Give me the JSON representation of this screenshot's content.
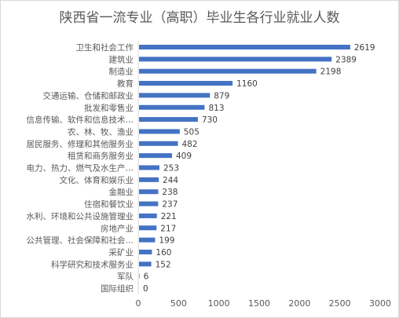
{
  "chart_data": {
    "type": "bar",
    "orientation": "horizontal",
    "title": "陕西省一流专业（高职）毕业生各行业就业人数",
    "categories": [
      "卫生和社会工作",
      "建筑业",
      "制造业",
      "教育",
      "交通运输、仓储和邮政业",
      "批发和零售业",
      "信息传输、软件和信息技术…",
      "农、林、牧、渔业",
      "居民服务、修理和其他服务业",
      "租赁和商务服务业",
      "电力、热力、燃气及水生产…",
      "文化、体育和娱乐业",
      "金融业",
      "住宿和餐饮业",
      "水利、环境和公共设施管理业",
      "房地产业",
      "公共管理、社会保障和社会…",
      "采矿业",
      "科学研究和技术服务业",
      "军队",
      "国际组织"
    ],
    "values": [
      2619,
      2389,
      2198,
      1160,
      879,
      813,
      730,
      505,
      482,
      409,
      253,
      244,
      238,
      237,
      221,
      217,
      199,
      160,
      152,
      6,
      0
    ],
    "xlim": [
      0,
      3000
    ],
    "xticks": [
      "0",
      "500",
      "1000",
      "1500",
      "2000",
      "2500",
      "3000"
    ],
    "bar_color": "#4472c4",
    "grid": false
  }
}
